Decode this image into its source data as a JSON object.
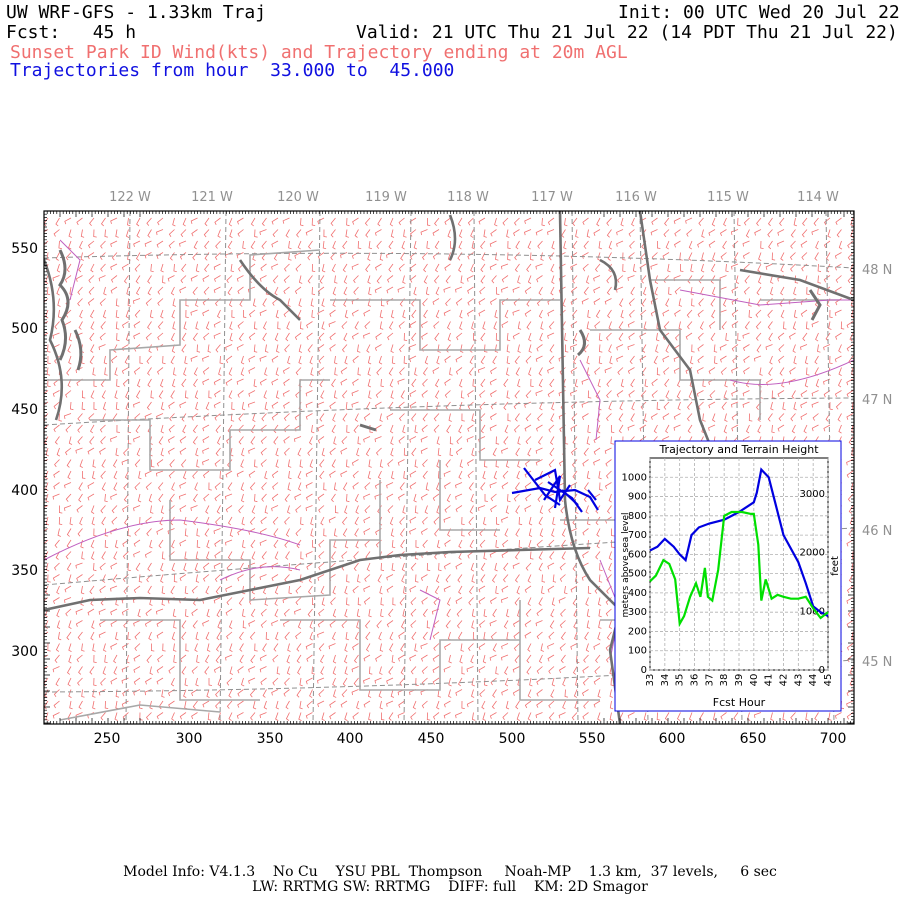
{
  "header": {
    "line1_left": "UW WRF-GFS - 1.33km Traj",
    "line1_right": "Init: 00 UTC Wed 20 Jul 22",
    "line2_left": "Fcst:   45 h",
    "line2_right": "Valid: 21 UTC Thu 21 Jul 22 (14 PDT Thu 21 Jul 22)",
    "line3": "Sunset Park ID Wind(kts) and Trajectory ending at 20m AGL",
    "line4_prefix": "Trajectories from hour",
    "line4_from": "33.000",
    "line4_to_word": "to",
    "line4_to": "45.000"
  },
  "map": {
    "x_ticks": [
      "250",
      "300",
      "350",
      "400",
      "450",
      "500",
      "550",
      "600",
      "650",
      "700"
    ],
    "y_ticks": [
      "550",
      "500",
      "450",
      "400",
      "350",
      "300"
    ],
    "lon_labels": [
      "122 W",
      "121 W",
      "120 W",
      "119 W",
      "118 W",
      "117 W",
      "116 W",
      "115 W",
      "114 W"
    ],
    "lat_labels": [
      "48 N",
      "47 N",
      "46 N",
      "45 N"
    ],
    "colors": {
      "wind_barbs": "#f07070",
      "state_borders": "#707070",
      "county_borders": "#a8a8a8",
      "water": "#c060c0",
      "trajectory": "#0000e0",
      "terrain_line": "#00e000"
    }
  },
  "inset": {
    "title": "Trajectory and Terrain Height",
    "ylabel_left": "meters above sea level",
    "ylabel_right": "feet",
    "xlabel": "Fcst Hour",
    "y_ticks": [
      "1000",
      "900",
      "800",
      "700",
      "600",
      "500",
      "400",
      "300",
      "200",
      "100",
      "0"
    ],
    "x_ticks": [
      "33",
      "34",
      "35",
      "36",
      "37",
      "38",
      "39",
      "40",
      "41",
      "42",
      "43",
      "44",
      "45"
    ],
    "feet_ticks": [
      "3000",
      "2000",
      "1000",
      "0"
    ]
  },
  "chart_data": {
    "type": "line",
    "title": "Trajectory and Terrain Height",
    "xlabel": "Fcst Hour",
    "ylabel": "meters above sea level",
    "y2label": "feet",
    "xlim": [
      33,
      45
    ],
    "ylim": [
      0,
      1100
    ],
    "series": [
      {
        "color": "#0000e0",
        "x": [
          33,
          33.5,
          34,
          34.6,
          35,
          35.4,
          35.8,
          36.3,
          37,
          38,
          39,
          39.6,
          40,
          40.2,
          40.5,
          41,
          41.5,
          42,
          43,
          43.5,
          44,
          44.5,
          45
        ],
        "y": [
          620,
          640,
          680,
          640,
          600,
          570,
          700,
          740,
          760,
          780,
          820,
          850,
          870,
          920,
          1040,
          1000,
          850,
          700,
          560,
          450,
          330,
          300,
          280
        ]
      },
      {
        "color": "#00e000",
        "x": [
          33,
          33.4,
          33.9,
          34.3,
          34.7,
          35.0,
          35.3,
          35.7,
          36.1,
          36.4,
          36.7,
          36.9,
          37.2,
          37.6,
          38.0,
          38.5,
          39.2,
          39.8,
          40.0,
          40.3,
          40.5,
          40.8,
          41.2,
          41.6,
          42,
          42.5,
          43,
          43.5,
          44,
          44.5,
          45
        ],
        "y": [
          460,
          490,
          570,
          550,
          470,
          240,
          280,
          380,
          450,
          380,
          530,
          380,
          360,
          520,
          800,
          820,
          820,
          810,
          810,
          650,
          360,
          470,
          370,
          390,
          380,
          370,
          370,
          380,
          320,
          270,
          300
        ]
      }
    ]
  },
  "footer": {
    "line1": "Model Info: V4.1.3    No Cu    YSU PBL  Thompson     Noah-MP    1.3 km,  37 levels,     6 sec",
    "line2": "LW: RRTMG SW: RRTMG    DIFF: full    KM: 2D Smagor"
  }
}
